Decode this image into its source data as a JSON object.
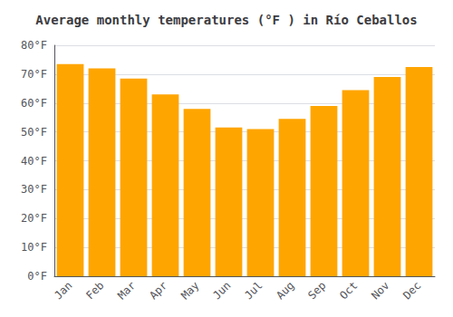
{
  "chart_data": {
    "type": "bar",
    "title": "Average monthly temperatures (°F ) in Río Ceballos",
    "categories": [
      "Jan",
      "Feb",
      "Mar",
      "Apr",
      "May",
      "Jun",
      "Jul",
      "Aug",
      "Sep",
      "Oct",
      "Nov",
      "Dec"
    ],
    "values": [
      73.5,
      72.0,
      68.5,
      63.0,
      58.0,
      51.5,
      51.0,
      54.5,
      59.0,
      64.5,
      69.0,
      72.5
    ],
    "color": "#FFA500",
    "ylim": [
      0,
      80
    ],
    "yticks": [
      {
        "value": 0,
        "label": "0°F"
      },
      {
        "value": 10,
        "label": "10°F"
      },
      {
        "value": 20,
        "label": "20°F"
      },
      {
        "value": 30,
        "label": "30°F"
      },
      {
        "value": 40,
        "label": "40°F"
      },
      {
        "value": 50,
        "label": "50°F"
      },
      {
        "value": 60,
        "label": "60°F"
      },
      {
        "value": 70,
        "label": "70°F"
      },
      {
        "value": 80,
        "label": "80°F"
      }
    ],
    "grid": true
  }
}
